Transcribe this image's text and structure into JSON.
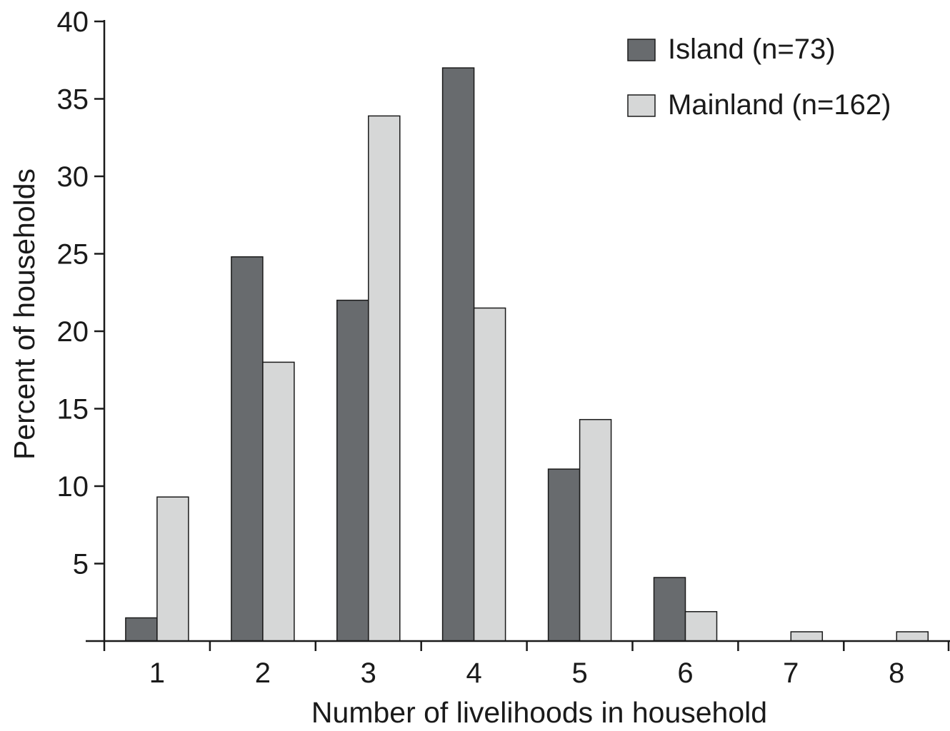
{
  "chart_data": {
    "type": "bar",
    "title": "",
    "xlabel": "Number of livelihoods in household",
    "ylabel": "Percent of households",
    "categories": [
      "1",
      "2",
      "3",
      "4",
      "5",
      "6",
      "7",
      "8"
    ],
    "ylim": [
      0,
      40
    ],
    "yticks": [
      5,
      10,
      15,
      20,
      25,
      30,
      35,
      40
    ],
    "grid": false,
    "legend_position": "top-right",
    "series": [
      {
        "name": "Island (n=73)",
        "color": "#686b6e",
        "values": [
          1.5,
          24.8,
          22.0,
          37.0,
          11.1,
          4.1,
          0,
          0
        ]
      },
      {
        "name": "Mainland (n=162)",
        "color": "#d6d7d7",
        "values": [
          9.3,
          18.0,
          33.9,
          21.5,
          14.3,
          1.9,
          0.6,
          0.6
        ]
      }
    ]
  }
}
